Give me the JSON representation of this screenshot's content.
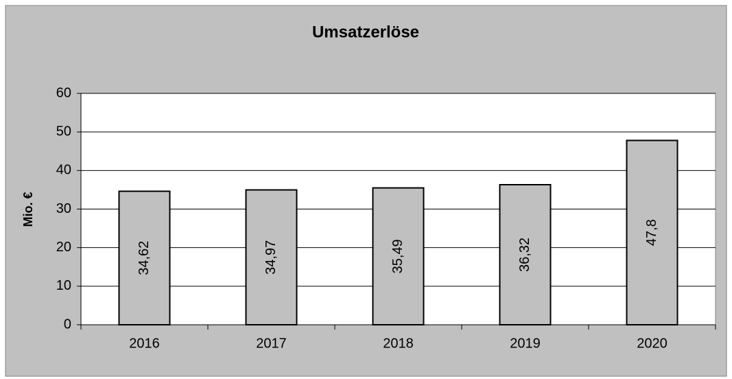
{
  "chart_data": {
    "type": "bar",
    "title": "Umsatzerlöse",
    "y_label": "Mio. €",
    "categories": [
      "2016",
      "2017",
      "2018",
      "2019",
      "2020"
    ],
    "values": [
      34.62,
      34.97,
      35.49,
      36.32,
      47.8
    ],
    "value_labels": [
      "34,62",
      "34,97",
      "35,49",
      "36,32",
      "47,8"
    ],
    "color": "#c0c0c0",
    "ylim": [
      0,
      60
    ],
    "yticks": [
      0,
      10,
      20,
      30,
      40,
      50,
      60
    ],
    "grid": true
  }
}
